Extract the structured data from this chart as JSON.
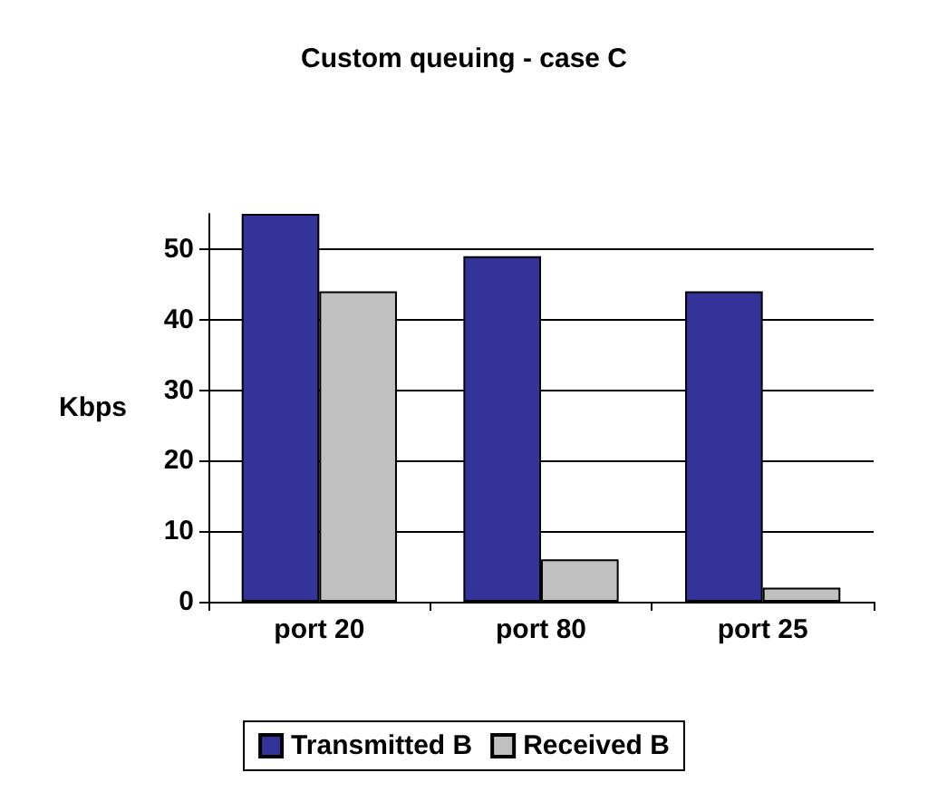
{
  "chart_data": {
    "type": "bar",
    "title": "Custom queuing - case C",
    "ylabel": "Kbps",
    "categories": [
      "port 20",
      "port 80",
      "port 25"
    ],
    "series": [
      {
        "name": "Transmitted B",
        "color": "#333399",
        "values": [
          55,
          49,
          44
        ]
      },
      {
        "name": "Received B",
        "color": "#c0c0c0",
        "values": [
          44,
          6,
          2
        ]
      }
    ],
    "ylim": [
      0,
      55
    ],
    "yticks": [
      0,
      10,
      20,
      30,
      40,
      50
    ],
    "grid": "y",
    "legend": "bottom"
  }
}
